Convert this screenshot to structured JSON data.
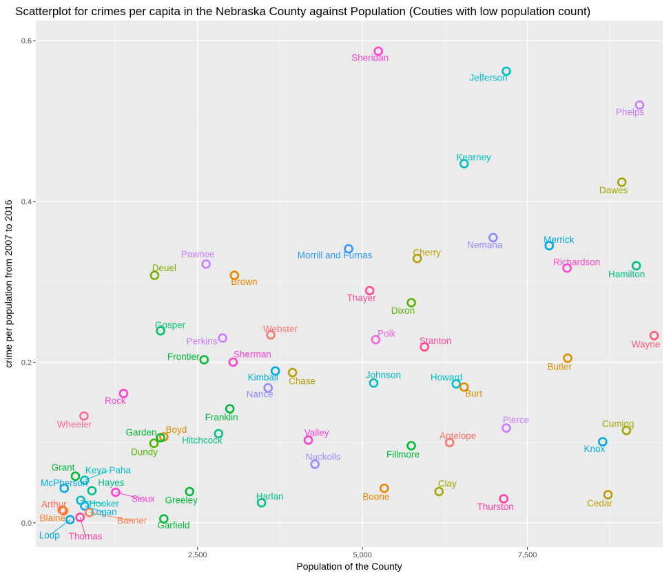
{
  "chart_data": {
    "type": "scatter",
    "title": "Scatterplot for crimes per capita in the Nebraska County against Population (Couties with low population count)",
    "xlabel": "Population of the County",
    "ylabel": "crime per population from 2007 to 2016",
    "xlim": [
      50,
      9550
    ],
    "ylim": [
      -0.03,
      0.625
    ],
    "x_ticks": [
      2500,
      5000,
      7500
    ],
    "x_tick_labels": [
      "2,500",
      "5,000",
      "7,500"
    ],
    "y_ticks": [
      0.0,
      0.2,
      0.4,
      0.6
    ],
    "y_tick_labels": [
      "0.0",
      "0.2",
      "0.4",
      "0.6"
    ],
    "grid": true,
    "legend": "none",
    "points": [
      {
        "name": "Sheridan",
        "x": 5240,
        "y": 0.587,
        "color": "#FF3FD3"
      },
      {
        "name": "Jefferson",
        "x": 7180,
        "y": 0.562,
        "color": "#00C0C8"
      },
      {
        "name": "Phelps",
        "x": 9200,
        "y": 0.52,
        "color": "#C77CFF"
      },
      {
        "name": "Kearney",
        "x": 6540,
        "y": 0.447,
        "color": "#00BFC4"
      },
      {
        "name": "Dawes",
        "x": 8930,
        "y": 0.424,
        "color": "#A3A500"
      },
      {
        "name": "Nemaha",
        "x": 6980,
        "y": 0.355,
        "color": "#8C8CFF"
      },
      {
        "name": "Merrick",
        "x": 7830,
        "y": 0.345,
        "color": "#00A9E5"
      },
      {
        "name": "Morrill and Furnas",
        "x": 4790,
        "y": 0.341,
        "color": "#3399FF"
      },
      {
        "name": "Cherry",
        "x": 5830,
        "y": 0.329,
        "color": "#B79F00"
      },
      {
        "name": "Pawnee",
        "x": 2630,
        "y": 0.322,
        "color": "#C77CFF"
      },
      {
        "name": "Richardson",
        "x": 8100,
        "y": 0.317,
        "color": "#FF49C8"
      },
      {
        "name": "Hamilton",
        "x": 9150,
        "y": 0.32,
        "color": "#00BE87"
      },
      {
        "name": "Deuel",
        "x": 1850,
        "y": 0.308,
        "color": "#7CAE00"
      },
      {
        "name": "Brown",
        "x": 3060,
        "y": 0.308,
        "color": "#E58700"
      },
      {
        "name": "Thayer",
        "x": 5110,
        "y": 0.289,
        "color": "#FF4A98"
      },
      {
        "name": "Dixon",
        "x": 5740,
        "y": 0.274,
        "color": "#5BB300"
      },
      {
        "name": "Gosper",
        "x": 1940,
        "y": 0.239,
        "color": "#00C16B"
      },
      {
        "name": "Webster",
        "x": 3610,
        "y": 0.234,
        "color": "#F8766D"
      },
      {
        "name": "Perkins",
        "x": 2880,
        "y": 0.23,
        "color": "#C77CFF"
      },
      {
        "name": "Polk",
        "x": 5200,
        "y": 0.228,
        "color": "#F564E3"
      },
      {
        "name": "Stanton",
        "x": 5940,
        "y": 0.219,
        "color": "#FF4A98"
      },
      {
        "name": "Wayne",
        "x": 9420,
        "y": 0.233,
        "color": "#FF5C7A"
      },
      {
        "name": "Frontier",
        "x": 2600,
        "y": 0.203,
        "color": "#00BA38"
      },
      {
        "name": "Sherman",
        "x": 3040,
        "y": 0.2,
        "color": "#FF3FD3"
      },
      {
        "name": "Butler",
        "x": 8110,
        "y": 0.205,
        "color": "#DB8E00"
      },
      {
        "name": "Kimball",
        "x": 3680,
        "y": 0.189,
        "color": "#00A9E5"
      },
      {
        "name": "Chase",
        "x": 3940,
        "y": 0.187,
        "color": "#B79F00"
      },
      {
        "name": "Nance",
        "x": 3570,
        "y": 0.168,
        "color": "#8C8CFF"
      },
      {
        "name": "Johnson",
        "x": 5170,
        "y": 0.174,
        "color": "#00BFC4"
      },
      {
        "name": "Howard",
        "x": 6420,
        "y": 0.173,
        "color": "#00BFC4"
      },
      {
        "name": "Burt",
        "x": 6540,
        "y": 0.169,
        "color": "#DB8E00"
      },
      {
        "name": "Rock",
        "x": 1380,
        "y": 0.161,
        "color": "#FF3FD3"
      },
      {
        "name": "Franklin",
        "x": 2990,
        "y": 0.142,
        "color": "#00BA38"
      },
      {
        "name": "Wheeler",
        "x": 780,
        "y": 0.133,
        "color": "#FF6C91"
      },
      {
        "name": "Pierce",
        "x": 7180,
        "y": 0.118,
        "color": "#C77CFF"
      },
      {
        "name": "Cuming",
        "x": 9000,
        "y": 0.115,
        "color": "#A3A500"
      },
      {
        "name": "Boyd",
        "x": 1990,
        "y": 0.107,
        "color": "#E58700"
      },
      {
        "name": "Garden",
        "x": 1940,
        "y": 0.106,
        "color": "#00BA38"
      },
      {
        "name": "Hitchcock",
        "x": 2820,
        "y": 0.111,
        "color": "#00C08B"
      },
      {
        "name": "Valley",
        "x": 4180,
        "y": 0.103,
        "color": "#FF3FD3"
      },
      {
        "name": "Knox",
        "x": 8640,
        "y": 0.101,
        "color": "#00A9E5"
      },
      {
        "name": "Antelope",
        "x": 6320,
        "y": 0.1,
        "color": "#F8766D"
      },
      {
        "name": "Dundy",
        "x": 1840,
        "y": 0.099,
        "color": "#53B400"
      },
      {
        "name": "Fillmore",
        "x": 5740,
        "y": 0.096,
        "color": "#00BA38"
      },
      {
        "name": "Nuckolls",
        "x": 4280,
        "y": 0.073,
        "color": "#9590FF"
      },
      {
        "name": "Grant",
        "x": 650,
        "y": 0.058,
        "color": "#00BA38"
      },
      {
        "name": "Keya Paha",
        "x": 790,
        "y": 0.053,
        "color": "#00BFC4"
      },
      {
        "name": "McPherson",
        "x": 480,
        "y": 0.043,
        "color": "#00A9E5"
      },
      {
        "name": "Hayes",
        "x": 900,
        "y": 0.04,
        "color": "#00C08B"
      },
      {
        "name": "Boone",
        "x": 5330,
        "y": 0.043,
        "color": "#E58700"
      },
      {
        "name": "Clay",
        "x": 6160,
        "y": 0.039,
        "color": "#A3A500"
      },
      {
        "name": "Sioux",
        "x": 1260,
        "y": 0.038,
        "color": "#FF3FD3"
      },
      {
        "name": "Greeley",
        "x": 2380,
        "y": 0.039,
        "color": "#00BA38"
      },
      {
        "name": "Cedar",
        "x": 8720,
        "y": 0.035,
        "color": "#B79F00"
      },
      {
        "name": "Thurston",
        "x": 7140,
        "y": 0.03,
        "color": "#FF3FA4"
      },
      {
        "name": "Hooker",
        "x": 730,
        "y": 0.028,
        "color": "#00BFC4"
      },
      {
        "name": "Harlan",
        "x": 3470,
        "y": 0.025,
        "color": "#00C08B"
      },
      {
        "name": "Logan",
        "x": 790,
        "y": 0.021,
        "color": "#00B0F6"
      },
      {
        "name": "Arthur",
        "x": 450,
        "y": 0.016,
        "color": "#FF6C50"
      },
      {
        "name": "Blaine",
        "x": 470,
        "y": 0.015,
        "color": "#FF7F24"
      },
      {
        "name": "Banner",
        "x": 860,
        "y": 0.013,
        "color": "#FF7F50"
      },
      {
        "name": "Thomas",
        "x": 720,
        "y": 0.007,
        "color": "#FF3FA4"
      },
      {
        "name": "Garfield",
        "x": 1990,
        "y": 0.005,
        "color": "#00BA38"
      },
      {
        "name": "Loup",
        "x": 570,
        "y": 0.004,
        "color": "#00A9E5"
      }
    ]
  }
}
